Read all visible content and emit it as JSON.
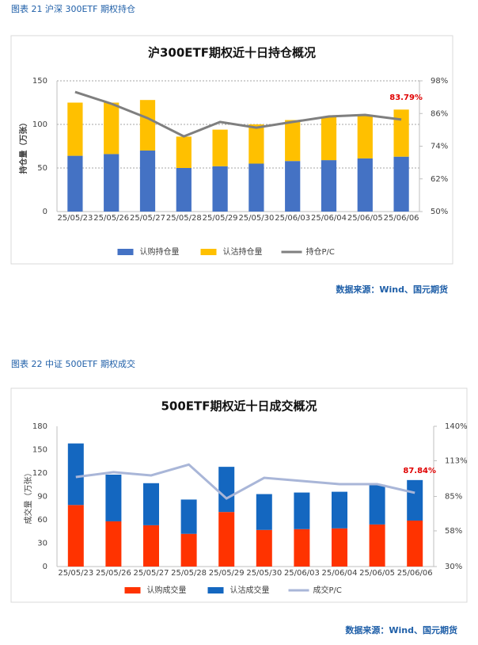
{
  "chart_data": [
    {
      "type": "bar",
      "stacked": true,
      "caption": "图表 21  沪深 300ETF 期权持仓",
      "title": "沪300ETF期权近十日持仓概况",
      "y_label": "持仓量（万张）",
      "source": "数据来源：Wind、国元期货",
      "categories": [
        "25/05/23",
        "25/05/26",
        "25/05/27",
        "25/05/28",
        "25/05/29",
        "25/05/30",
        "25/06/03",
        "25/06/04",
        "25/06/05",
        "25/06/06"
      ],
      "series": [
        {
          "name": "认购持仓量",
          "color": "#4472c4",
          "values": [
            64,
            66,
            70,
            50,
            52,
            55,
            58,
            59,
            61,
            63
          ]
        },
        {
          "name": "认沽持仓量",
          "color": "#ffc000",
          "values": [
            61,
            59,
            58,
            36,
            42,
            45,
            47,
            50,
            49,
            54
          ]
        },
        {
          "name": "持仓P/C",
          "color": "#7f7f7f",
          "type": "line",
          "axis": "y2",
          "values": [
            93.9,
            89.6,
            84.3,
            77.6,
            82.9,
            80.8,
            82.9,
            84.9,
            85.5,
            83.79
          ],
          "value_labels": [
            null,
            null,
            null,
            null,
            null,
            null,
            null,
            null,
            null,
            "83.79%"
          ],
          "label_color": "#e00000"
        }
      ],
      "ylim": [
        0,
        150
      ],
      "yticks": [
        0,
        50,
        100,
        150
      ],
      "y2lim": [
        50,
        98
      ],
      "y2ticks": [
        {
          "value": 50,
          "label": "50%"
        },
        {
          "value": 62,
          "label": "62%"
        },
        {
          "value": 74,
          "label": "74%"
        },
        {
          "value": 86,
          "label": "86%"
        },
        {
          "value": 98,
          "label": "98%"
        }
      ],
      "grid": true,
      "legend": "bottom"
    },
    {
      "type": "bar",
      "stacked": true,
      "caption": "图表 22  中证 500ETF 期权成交",
      "title": "500ETF期权近十日成交概况",
      "y_label": "成交量（万张）",
      "source": "数据来源：Wind、国元期货",
      "categories": [
        "25/05/23",
        "25/05/26",
        "25/05/27",
        "25/05/28",
        "25/05/29",
        "25/05/30",
        "25/06/03",
        "25/06/04",
        "25/06/05",
        "25/06/06"
      ],
      "series": [
        {
          "name": "认购成交量",
          "color": "#ff3300",
          "values": [
            79,
            58,
            53,
            42,
            70,
            47,
            48,
            49,
            54,
            59
          ]
        },
        {
          "name": "认沽成交量",
          "color": "#1467c0",
          "values": [
            79,
            60,
            54,
            44,
            58,
            46,
            47,
            47,
            51,
            52
          ]
        },
        {
          "name": "成交P/C",
          "color": "#a9b6d8",
          "type": "line",
          "axis": "y2",
          "values": [
            100.2,
            104,
            101.5,
            110,
            83.4,
            99.6,
            97.1,
            94.6,
            94.6,
            87.84
          ],
          "value_labels": [
            null,
            null,
            null,
            null,
            null,
            null,
            null,
            null,
            null,
            "87.84%"
          ],
          "label_color": "#e00000"
        }
      ],
      "ylim": [
        0,
        180
      ],
      "yticks": [
        0,
        30,
        60,
        90,
        120,
        150,
        180
      ],
      "y2lim": [
        30,
        140
      ],
      "y2ticks": [
        {
          "value": 30,
          "label": "30%"
        },
        {
          "value": 58,
          "label": "58%"
        },
        {
          "value": 85,
          "label": "85%"
        },
        {
          "value": 113,
          "label": "113%"
        },
        {
          "value": 140,
          "label": "140%"
        }
      ],
      "grid": false,
      "legend": "bottom"
    }
  ]
}
